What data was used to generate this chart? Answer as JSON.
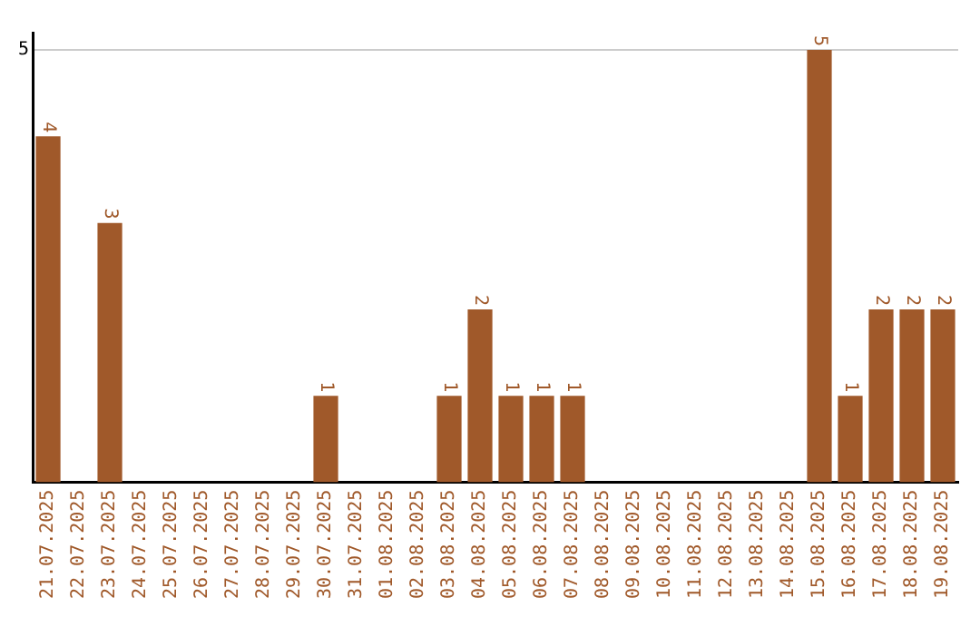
{
  "chart_data": {
    "type": "bar",
    "categories": [
      "21.07.2025",
      "22.07.2025",
      "23.07.2025",
      "24.07.2025",
      "25.07.2025",
      "26.07.2025",
      "27.07.2025",
      "28.07.2025",
      "29.07.2025",
      "30.07.2025",
      "31.07.2025",
      "01.08.2025",
      "02.08.2025",
      "03.08.2025",
      "04.08.2025",
      "05.08.2025",
      "06.08.2025",
      "07.08.2025",
      "08.08.2025",
      "09.08.2025",
      "10.08.2025",
      "11.08.2025",
      "12.08.2025",
      "13.08.2025",
      "14.08.2025",
      "15.08.2025",
      "16.08.2025",
      "17.08.2025",
      "18.08.2025",
      "19.08.2025"
    ],
    "values": [
      4,
      0,
      3,
      0,
      0,
      0,
      0,
      0,
      0,
      1,
      0,
      0,
      0,
      1,
      2,
      1,
      1,
      1,
      0,
      0,
      0,
      0,
      0,
      0,
      0,
      5,
      1,
      2,
      2,
      2
    ],
    "value_labels": [
      "4",
      null,
      "3",
      null,
      null,
      null,
      null,
      null,
      null,
      "1",
      null,
      null,
      null,
      "1",
      "2",
      "1",
      "1",
      "1",
      null,
      null,
      null,
      null,
      null,
      null,
      null,
      "5",
      "1",
      "2",
      "2",
      "2"
    ],
    "color": "#a0592a",
    "ylim": [
      0,
      5.2
    ],
    "yticks": [
      5
    ],
    "grid": "y",
    "legend": false
  }
}
